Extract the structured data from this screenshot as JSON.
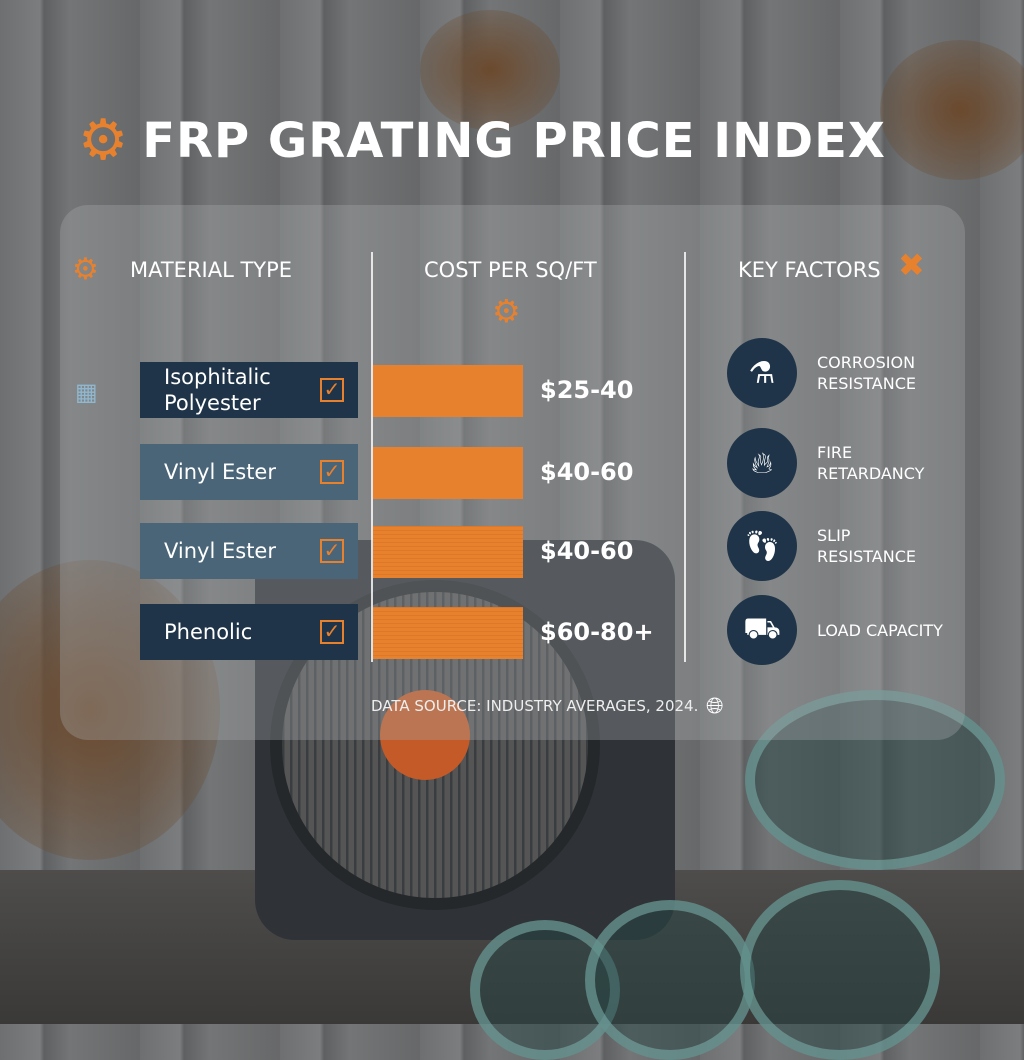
{
  "title": "FRP GRATING PRICE INDEX",
  "headers": {
    "material": "MATERIAL TYPE",
    "cost": "COST PER SQ/FT",
    "factors": "KEY FACTORS"
  },
  "materials": [
    {
      "name": "Isophitalic Polyester",
      "price": "$25-40",
      "checked": true
    },
    {
      "name": "Vinyl Ester",
      "price": "$40-60",
      "checked": true
    },
    {
      "name": "Vinyl Ester",
      "price": "$40-60",
      "checked": true
    },
    {
      "name": "Phenolic",
      "price": "$60-80+",
      "checked": true
    }
  ],
  "factors": [
    {
      "label": "CORROSION RESISTANCE",
      "icon": "flask-icon"
    },
    {
      "label": "FIRE RETARDANCY",
      "icon": "flame-icon"
    },
    {
      "label": "SLIP RESISTANCE",
      "icon": "footprint-icon"
    },
    {
      "label": "LOAD CAPACITY",
      "icon": "cart-load-icon"
    }
  ],
  "source": "DATA SOURCE: INDUSTRY AVERAGES, 2024.",
  "colors": {
    "accent": "#e8812e",
    "navy": "#1f3448",
    "slate": "#4a6478"
  }
}
